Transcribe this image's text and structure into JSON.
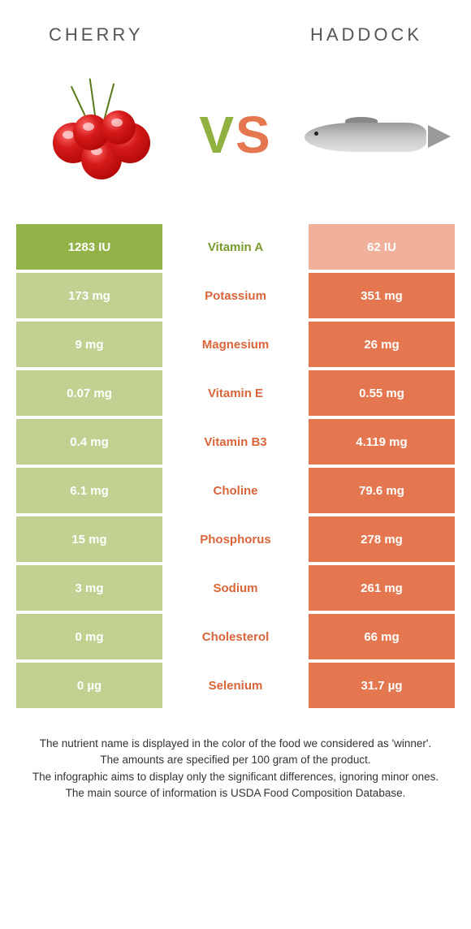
{
  "header": {
    "left_label": "CHERRY",
    "right_label": "HADDOCK"
  },
  "hero": {
    "vs_v": "V",
    "vs_s": "S",
    "left_image": "cherry-cluster",
    "right_image": "haddock-fish"
  },
  "colors": {
    "left_winner_bg": "#92b347",
    "left_loser_bg": "#c0d191",
    "right_winner_bg": "#e4774f",
    "right_loser_bg": "#f0b09a",
    "label_left_color": "#7a9a2e",
    "label_right_color": "#d9653b",
    "cell_text_color": "#ffffff",
    "header_text_color": "#555555",
    "background": "#ffffff"
  },
  "table": {
    "type": "comparison-table",
    "rows": [
      {
        "left": "1283 IU",
        "label": "Vitamin A",
        "right": "62 IU",
        "winner": "left"
      },
      {
        "left": "173 mg",
        "label": "Potassium",
        "right": "351 mg",
        "winner": "right"
      },
      {
        "left": "9 mg",
        "label": "Magnesium",
        "right": "26 mg",
        "winner": "right"
      },
      {
        "left": "0.07 mg",
        "label": "Vitamin E",
        "right": "0.55 mg",
        "winner": "right"
      },
      {
        "left": "0.4 mg",
        "label": "Vitamin B3",
        "right": "4.119 mg",
        "winner": "right"
      },
      {
        "left": "6.1 mg",
        "label": "Choline",
        "right": "79.6 mg",
        "winner": "right"
      },
      {
        "left": "15 mg",
        "label": "Phosphorus",
        "right": "278 mg",
        "winner": "right"
      },
      {
        "left": "3 mg",
        "label": "Sodium",
        "right": "261 mg",
        "winner": "right"
      },
      {
        "left": "0 mg",
        "label": "Cholesterol",
        "right": "66 mg",
        "winner": "right"
      },
      {
        "left": "0 µg",
        "label": "Selenium",
        "right": "31.7 µg",
        "winner": "right"
      }
    ]
  },
  "footnotes": {
    "line1": "The nutrient name is displayed in the color of the food we considered as 'winner'.",
    "line2": "The amounts are specified per 100 gram of the product.",
    "line3": "The infographic aims to display only the significant differences, ignoring minor ones.",
    "line4": "The main source of information is USDA Food Composition Database."
  }
}
